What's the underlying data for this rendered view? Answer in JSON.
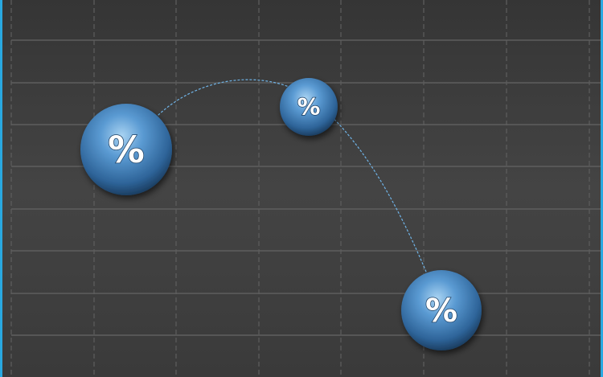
{
  "scene": {
    "background": "#3d3d3d",
    "border_color": "#29a8e0",
    "sphere_color": "#4a88c2",
    "curve_color": "#6fb3e6",
    "spheres": [
      {
        "label": "%",
        "size": "large"
      },
      {
        "label": "%",
        "size": "small"
      },
      {
        "label": "%",
        "size": "medium"
      }
    ]
  }
}
